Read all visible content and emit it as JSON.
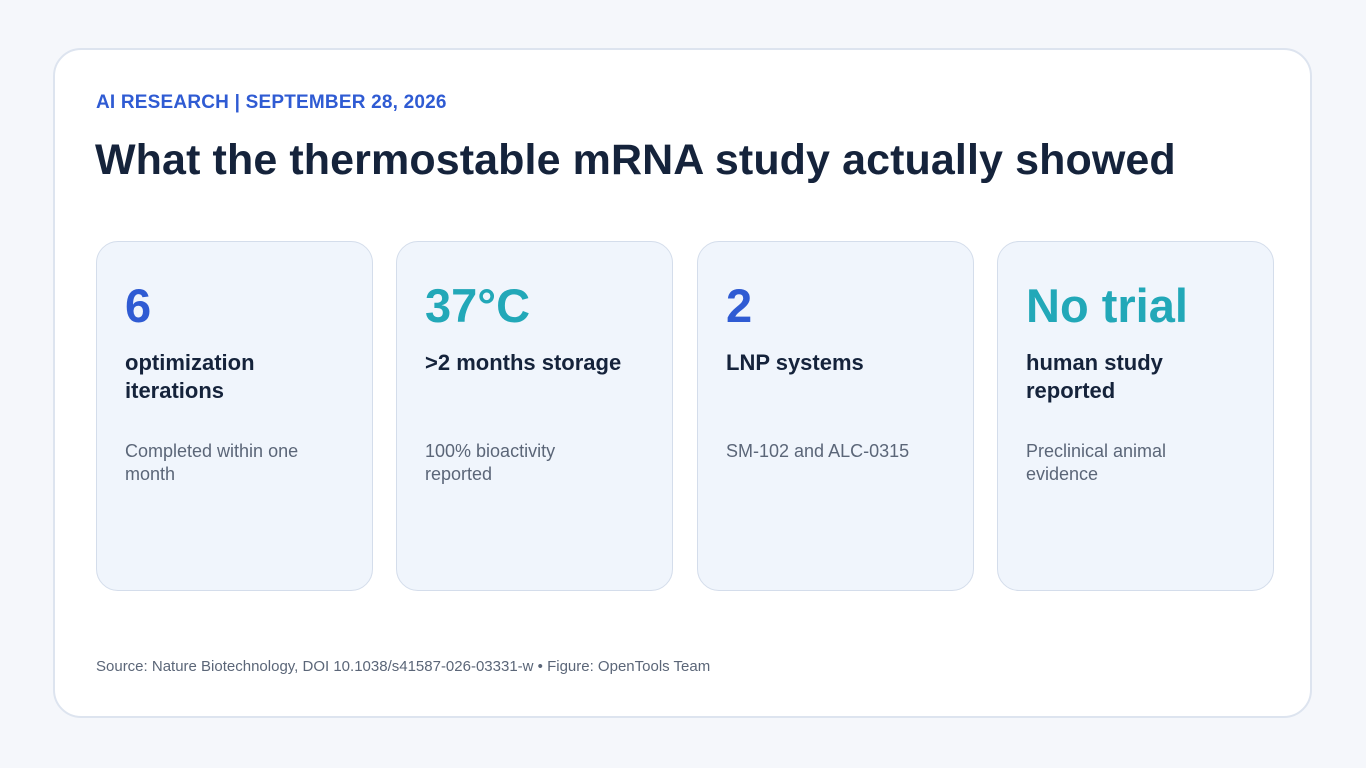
{
  "header": {
    "eyebrow": "AI RESEARCH | SEPTEMBER 28, 2026",
    "title": "What the thermostable mRNA study actually showed"
  },
  "stats": [
    {
      "value": "6",
      "label": "optimization iterations",
      "note": "Completed within one month",
      "value_color": "#2f5bd3"
    },
    {
      "value": "37°C",
      "label": ">2 months storage",
      "note": "100% bioactivity reported",
      "value_color": "#22a8b8"
    },
    {
      "value": "2",
      "label": "LNP systems",
      "note": "SM-102 and ALC-0315",
      "value_color": "#2f5bd3"
    },
    {
      "value": "No trial",
      "label": "human study reported",
      "note": "Preclinical animal evidence",
      "value_color": "#22a8b8"
    }
  ],
  "footer": {
    "source": "Source: Nature Biotechnology, DOI 10.1038/s41587-026-03331-w • Figure: OpenTools Team"
  },
  "colors": {
    "accent_blue": "#2f5bd3",
    "accent_teal": "#22a8b8",
    "title": "#15233b",
    "muted": "#5b6678"
  }
}
